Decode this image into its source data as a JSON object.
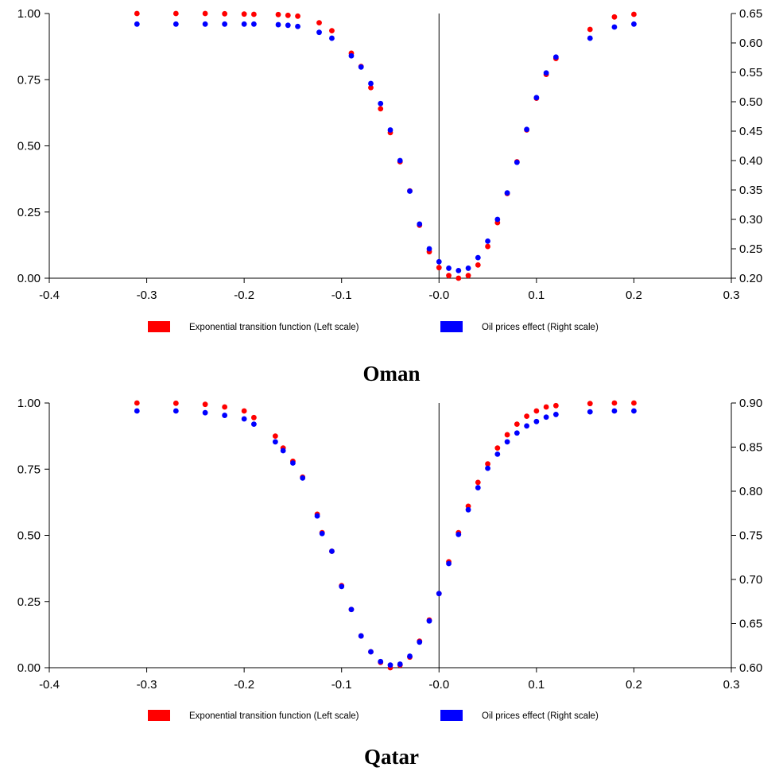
{
  "chart_data": [
    {
      "type": "scatter",
      "title": "Oman",
      "xlabel": "",
      "ylabel": "",
      "xlim": [
        -0.4,
        0.3
      ],
      "ylim_left": [
        0.0,
        1.0
      ],
      "ylim_right": [
        0.2,
        0.65
      ],
      "x_ticks": [
        "-0.4",
        "-0.3",
        "-0.2",
        "-0.1",
        "-0.0",
        "0.1",
        "0.2",
        "0.3"
      ],
      "y_left_ticks": [
        "0.00",
        "0.25",
        "0.50",
        "0.75",
        "1.00"
      ],
      "y_right_ticks": [
        "0.20",
        "0.25",
        "0.30",
        "0.35",
        "0.40",
        "0.45",
        "0.50",
        "0.55",
        "0.60",
        "0.65"
      ],
      "vertical_reference_line_x": 0.0,
      "grid": false,
      "legend_position": "bottom",
      "legend": [
        {
          "label": "Exponential transition function (Left scale)",
          "color": "#ff0000"
        },
        {
          "label": "Oil prices effect (Right scale)",
          "color": "#0000ff"
        }
      ],
      "series": [
        {
          "name": "Exponential transition function (Left scale)",
          "axis": "left",
          "color": "#ff0000",
          "x": [
            -0.31,
            -0.27,
            -0.24,
            -0.22,
            -0.2,
            -0.19,
            -0.165,
            -0.155,
            -0.145,
            -0.123,
            -0.11,
            -0.09,
            -0.08,
            -0.07,
            -0.06,
            -0.05,
            -0.04,
            -0.03,
            -0.02,
            -0.01,
            0.0,
            0.01,
            0.02,
            0.03,
            0.04,
            0.05,
            0.06,
            0.07,
            0.08,
            0.09,
            0.1,
            0.11,
            0.12,
            0.155,
            0.18,
            0.2
          ],
          "y": [
            1.0,
            1.0,
            1.0,
            0.999,
            0.998,
            0.997,
            0.996,
            0.993,
            0.99,
            0.965,
            0.935,
            0.85,
            0.8,
            0.72,
            0.64,
            0.55,
            0.44,
            0.33,
            0.2,
            0.1,
            0.04,
            0.01,
            0.0,
            0.01,
            0.05,
            0.12,
            0.21,
            0.32,
            0.44,
            0.56,
            0.68,
            0.77,
            0.83,
            0.94,
            0.987,
            0.997
          ]
        },
        {
          "name": "Oil prices effect (Right scale)",
          "axis": "right",
          "color": "#0000ff",
          "x": [
            -0.31,
            -0.27,
            -0.24,
            -0.22,
            -0.2,
            -0.19,
            -0.165,
            -0.155,
            -0.145,
            -0.123,
            -0.11,
            -0.09,
            -0.08,
            -0.07,
            -0.06,
            -0.05,
            -0.04,
            -0.03,
            -0.02,
            -0.01,
            0.0,
            0.01,
            0.02,
            0.03,
            0.04,
            0.05,
            0.06,
            0.07,
            0.08,
            0.09,
            0.1,
            0.11,
            0.12,
            0.155,
            0.18,
            0.2
          ],
          "y": [
            0.632,
            0.632,
            0.632,
            0.632,
            0.632,
            0.632,
            0.631,
            0.63,
            0.628,
            0.618,
            0.608,
            0.578,
            0.559,
            0.531,
            0.497,
            0.452,
            0.4,
            0.348,
            0.292,
            0.25,
            0.228,
            0.217,
            0.213,
            0.217,
            0.235,
            0.263,
            0.3,
            0.345,
            0.397,
            0.453,
            0.507,
            0.549,
            0.576,
            0.608,
            0.627,
            0.632
          ]
        }
      ]
    },
    {
      "type": "scatter",
      "title": "Qatar",
      "xlabel": "",
      "ylabel": "",
      "xlim": [
        -0.4,
        0.3
      ],
      "ylim_left": [
        0.0,
        1.0
      ],
      "ylim_right": [
        0.6,
        0.9
      ],
      "x_ticks": [
        "-0.4",
        "-0.3",
        "-0.2",
        "-0.1",
        "-0.0",
        "0.1",
        "0.2",
        "0.3"
      ],
      "y_left_ticks": [
        "0.00",
        "0.25",
        "0.50",
        "0.75",
        "1.00"
      ],
      "y_right_ticks": [
        "0.60",
        "0.65",
        "0.70",
        "0.75",
        "0.80",
        "0.85",
        "0.90"
      ],
      "vertical_reference_line_x": 0.0,
      "grid": false,
      "legend_position": "bottom",
      "legend": [
        {
          "label": "Exponential transition function (Left scale)",
          "color": "#ff0000"
        },
        {
          "label": "Oil prices effect (Right scale)",
          "color": "#0000ff"
        }
      ],
      "series": [
        {
          "name": "Exponential transition function (Left scale)",
          "axis": "left",
          "color": "#ff0000",
          "x": [
            -0.31,
            -0.27,
            -0.24,
            -0.22,
            -0.2,
            -0.19,
            -0.168,
            -0.16,
            -0.15,
            -0.14,
            -0.125,
            -0.12,
            -0.11,
            -0.1,
            -0.09,
            -0.08,
            -0.07,
            -0.06,
            -0.05,
            -0.04,
            -0.03,
            -0.02,
            -0.01,
            0.0,
            0.01,
            0.02,
            0.03,
            0.04,
            0.05,
            0.06,
            0.07,
            0.08,
            0.09,
            0.1,
            0.11,
            0.12,
            0.155,
            0.18,
            0.2
          ],
          "y": [
            1.0,
            0.999,
            0.995,
            0.985,
            0.97,
            0.945,
            0.875,
            0.83,
            0.78,
            0.72,
            0.58,
            0.51,
            0.44,
            0.31,
            0.22,
            0.12,
            0.06,
            0.02,
            0.0,
            0.01,
            0.04,
            0.1,
            0.18,
            0.28,
            0.4,
            0.51,
            0.61,
            0.7,
            0.77,
            0.83,
            0.88,
            0.92,
            0.95,
            0.97,
            0.985,
            0.99,
            0.998,
            1.0,
            1.0
          ]
        },
        {
          "name": "Oil prices effect (Right scale)",
          "axis": "right",
          "color": "#0000ff",
          "x": [
            -0.31,
            -0.27,
            -0.24,
            -0.22,
            -0.2,
            -0.19,
            -0.168,
            -0.16,
            -0.15,
            -0.14,
            -0.125,
            -0.12,
            -0.11,
            -0.1,
            -0.09,
            -0.08,
            -0.07,
            -0.06,
            -0.05,
            -0.04,
            -0.03,
            -0.02,
            -0.01,
            0.0,
            0.01,
            0.02,
            0.03,
            0.04,
            0.05,
            0.06,
            0.07,
            0.08,
            0.09,
            0.1,
            0.11,
            0.12,
            0.155,
            0.18,
            0.2
          ],
          "y": [
            0.891,
            0.891,
            0.889,
            0.886,
            0.882,
            0.876,
            0.856,
            0.846,
            0.832,
            0.815,
            0.772,
            0.752,
            0.732,
            0.692,
            0.666,
            0.636,
            0.618,
            0.607,
            0.603,
            0.604,
            0.613,
            0.629,
            0.653,
            0.684,
            0.718,
            0.751,
            0.779,
            0.804,
            0.826,
            0.842,
            0.856,
            0.866,
            0.874,
            0.879,
            0.884,
            0.887,
            0.89,
            0.891,
            0.891
          ]
        }
      ]
    }
  ]
}
